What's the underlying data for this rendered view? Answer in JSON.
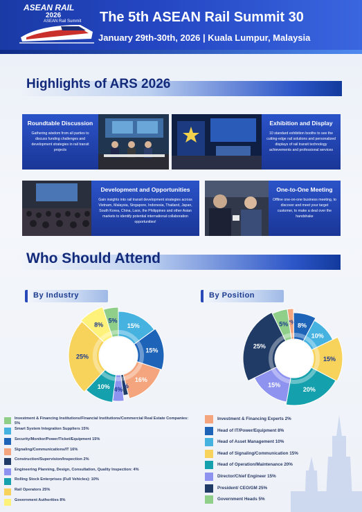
{
  "header": {
    "logo_line1": "ASEAN RAIL",
    "logo_line2": "2026",
    "logo_line3": "ASEAN Rail Summit",
    "title": "The 5th ASEAN Rail Summit 30",
    "subtitle": "January 29th-30th, 2026 | Kuala Lumpur, Malaysia"
  },
  "highlights": {
    "heading": "Highlights of ARS 2026",
    "cards": [
      {
        "title": "Roundtable Discussion",
        "desc": "Gathering wisdom from all parties to discuss funding challenges and development strategies in rail transit projects"
      },
      {
        "title": "Exhibition and Display",
        "desc": "10 standard exhibition booths to see the cutting-edge rail solutions and personalized displays of rail transit technology achievements and professional services"
      },
      {
        "title": "Development and Opportunities",
        "desc": "Gain insights into rail transit development strategies across Vietnam, Malaysia, Singapore, Indonesia, Thailand, Japan, South Korea, China, Laos, the Philippines and other Asian markets to identify potential international collaboration opportunities!"
      },
      {
        "title": "One-to-One Meeting",
        "desc": "Offline one-on-one business meeting, to discover and meet your target customer, to make a deal over the handshake"
      }
    ]
  },
  "attend": {
    "heading": "Who Should Attend",
    "industry_label": "By Industry",
    "position_label": "By Position"
  },
  "colors": {
    "header_blue": "#2547c4",
    "heading_navy": "#132a7a"
  },
  "chart_data": [
    {
      "type": "pie",
      "title": "By Industry",
      "series": [
        {
          "name": "Investment & Financing Institutions/Financial Institutions/Commercial Real Estate Companies: 5%",
          "value": 5,
          "label": "5%",
          "color": "#8fcf8a"
        },
        {
          "name": "Smart System Integration Suppliers 15%",
          "value": 15,
          "label": "15%",
          "color": "#46b2e0"
        },
        {
          "name": "Security/Monitor/Power/Ticket/Equipment 15%",
          "value": 15,
          "label": "15%",
          "color": "#1d63b8"
        },
        {
          "name": "Signaling/Communications/IT  16%",
          "value": 16,
          "label": "16%",
          "color": "#f4a57d"
        },
        {
          "name": "Construction/Supervision/Inspection  2%",
          "value": 2,
          "label": "2%",
          "color": "#1f3b66"
        },
        {
          "name": "Engineering Planning, Design, Consultation, Quality Inspection: 4%",
          "value": 4,
          "label": "4%",
          "color": "#8e93f0"
        },
        {
          "name": "Rolling Stock Enterprises (Full Vehicles): 10%",
          "value": 10,
          "label": "10%",
          "color": "#14a0ad"
        },
        {
          "name": "Rail Operators 25%",
          "value": 25,
          "label": "25%",
          "color": "#f8d35c"
        },
        {
          "name": "Government Authorities 8%",
          "value": 8,
          "label": "8%",
          "color": "#fff27a"
        }
      ]
    },
    {
      "type": "pie",
      "title": "By Position",
      "series": [
        {
          "name": "Investment & Financing Experts 2%",
          "value": 2,
          "label": "2%",
          "color": "#f4a57d"
        },
        {
          "name": "Head of IT/Power/Equipment 8%",
          "value": 8,
          "label": "8%",
          "color": "#1d63b8"
        },
        {
          "name": "Head of Asset Management 10%",
          "value": 10,
          "label": "10%",
          "color": "#46b2e0"
        },
        {
          "name": "Head of Signaling/Communication 15%",
          "value": 15,
          "label": "15%",
          "color": "#f8d35c"
        },
        {
          "name": "Head of Operation/Maintenance 20%",
          "value": 20,
          "label": "20%",
          "color": "#14a0ad"
        },
        {
          "name": "Director/Chief Engineer 15%",
          "value": 15,
          "label": "15%",
          "color": "#8e93f0"
        },
        {
          "name": "President/ CEO/GM 25%",
          "value": 25,
          "label": "25%",
          "color": "#1f3b66"
        },
        {
          "name": "Government Heads 5%",
          "value": 5,
          "label": "5%",
          "color": "#8fcf8a"
        }
      ]
    }
  ]
}
